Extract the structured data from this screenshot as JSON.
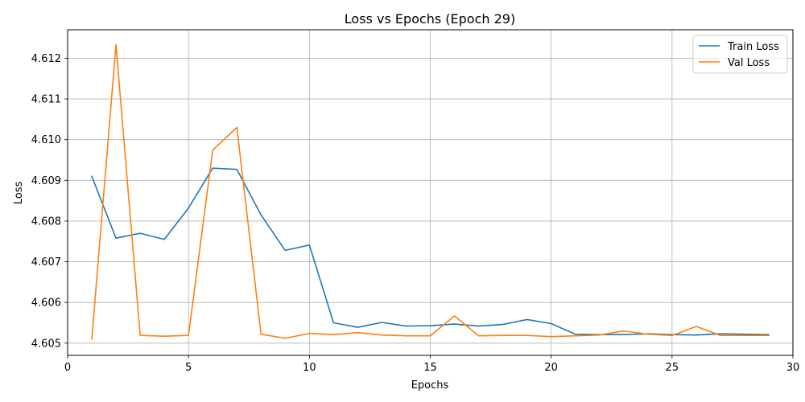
{
  "chart_data": {
    "type": "line",
    "title": "Loss vs Epochs (Epoch 29)",
    "xlabel": "Epochs",
    "ylabel": "Loss",
    "xlim": [
      0,
      30
    ],
    "ylim": [
      4.6047,
      4.6127
    ],
    "xticks": [
      0,
      5,
      10,
      15,
      20,
      25,
      30
    ],
    "yticks": [
      4.605,
      4.606,
      4.607,
      4.608,
      4.609,
      4.61,
      4.611,
      4.612
    ],
    "grid": true,
    "legend_position": "top-right",
    "x": [
      1,
      2,
      3,
      4,
      5,
      6,
      7,
      8,
      9,
      10,
      11,
      12,
      13,
      14,
      15,
      16,
      17,
      18,
      19,
      20,
      21,
      22,
      23,
      24,
      25,
      26,
      27,
      28,
      29
    ],
    "series": [
      {
        "name": "Train Loss",
        "color": "#1f77b4",
        "values": [
          4.6091,
          4.60758,
          4.6077,
          4.60755,
          4.60832,
          4.6093,
          4.60927,
          4.60815,
          4.60728,
          4.60741,
          4.6055,
          4.60539,
          4.60551,
          4.60542,
          4.60543,
          4.60547,
          4.60542,
          4.60546,
          4.60558,
          4.60548,
          4.60522,
          4.60521,
          4.60521,
          4.60523,
          4.60521,
          4.6052,
          4.60523,
          4.60522,
          4.60521
        ]
      },
      {
        "name": "Val Loss",
        "color": "#ff7f0e",
        "values": [
          4.6051,
          4.61233,
          4.60519,
          4.60517,
          4.60519,
          4.60974,
          4.6103,
          4.60522,
          4.60512,
          4.60524,
          4.60521,
          4.60526,
          4.6052,
          4.60518,
          4.60518,
          4.60567,
          4.60518,
          4.60519,
          4.60519,
          4.60516,
          4.60518,
          4.6052,
          4.6053,
          4.60522,
          4.60519,
          4.60541,
          4.60519,
          4.60519,
          4.60519
        ]
      }
    ]
  }
}
